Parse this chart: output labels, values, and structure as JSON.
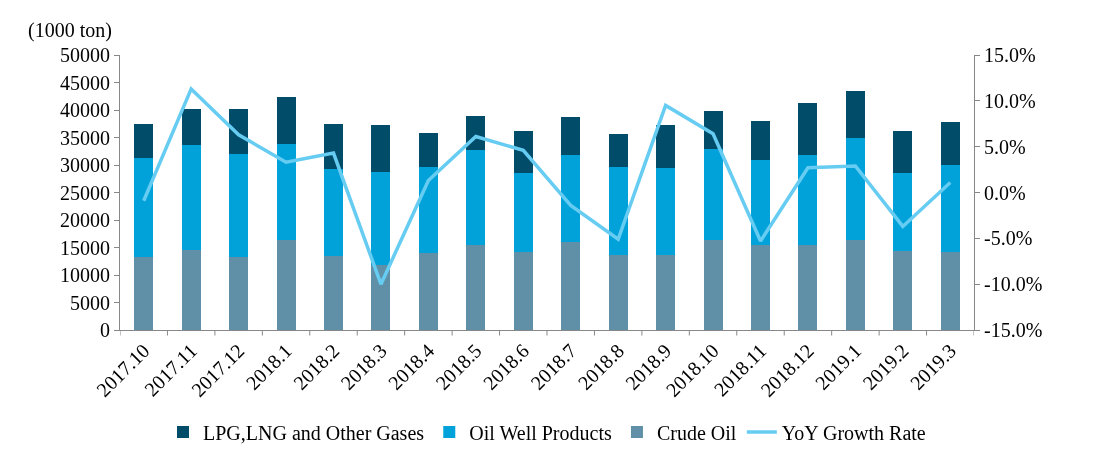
{
  "chart_data": {
    "type": "bar",
    "stacked": true,
    "ylabel": "(1000 ton)",
    "categories": [
      "2017.10",
      "2017.11",
      "2017.12",
      "2018.1",
      "2018.2",
      "2018.3",
      "2018.4",
      "2018.5",
      "2018.6",
      "2018.7",
      "2018.8",
      "2018.9",
      "2018.10",
      "2018.11",
      "2018.12",
      "2019.1",
      "2019.2",
      "2019.3"
    ],
    "series": [
      {
        "name": "Crude Oil",
        "color": "#5f90a8",
        "values": [
          13300,
          14600,
          13200,
          16300,
          13500,
          11800,
          14000,
          15400,
          14100,
          16000,
          13600,
          13600,
          16400,
          15400,
          15400,
          16400,
          14400,
          14100
        ]
      },
      {
        "name": "Oil Well Products",
        "color": "#00a2d9",
        "values": [
          18000,
          19000,
          18800,
          17600,
          15800,
          16900,
          15600,
          17300,
          14400,
          15800,
          16000,
          15900,
          16600,
          15500,
          16500,
          18500,
          14100,
          15900
        ]
      },
      {
        "name": "LPG,LNG and Other Gases",
        "color": "#014c68",
        "values": [
          6200,
          6500,
          8200,
          8400,
          8200,
          8600,
          6300,
          6200,
          7700,
          6900,
          6000,
          7700,
          6900,
          7100,
          9400,
          8600,
          7700,
          7800
        ]
      },
      {
        "name": "YoY Growth Rate",
        "type": "line",
        "axis": "y2",
        "color": "#66ccf2",
        "marker": "none",
        "values": [
          -0.9,
          11.3,
          6.3,
          3.3,
          4.3,
          -10.0,
          1.3,
          6.1,
          4.6,
          -1.4,
          -5.1,
          9.5,
          6.4,
          -5.3,
          2.7,
          2.9,
          -3.7,
          1.1
        ]
      }
    ],
    "ylim": [
      0,
      50000
    ],
    "yticks": [
      0,
      5000,
      10000,
      15000,
      20000,
      25000,
      30000,
      35000,
      40000,
      45000,
      50000
    ],
    "y2lim": [
      -15,
      15
    ],
    "y2ticks": [
      {
        "value": -15,
        "label": "-15.0%"
      },
      {
        "value": -10,
        "label": "-10.0%"
      },
      {
        "value": -5,
        "label": "-5.0%"
      },
      {
        "value": 0,
        "label": "0.0%"
      },
      {
        "value": 5,
        "label": "5.0%"
      },
      {
        "value": 10,
        "label": "10.0%"
      },
      {
        "value": 15,
        "label": "15.0%"
      }
    ],
    "legend": "bottom"
  }
}
